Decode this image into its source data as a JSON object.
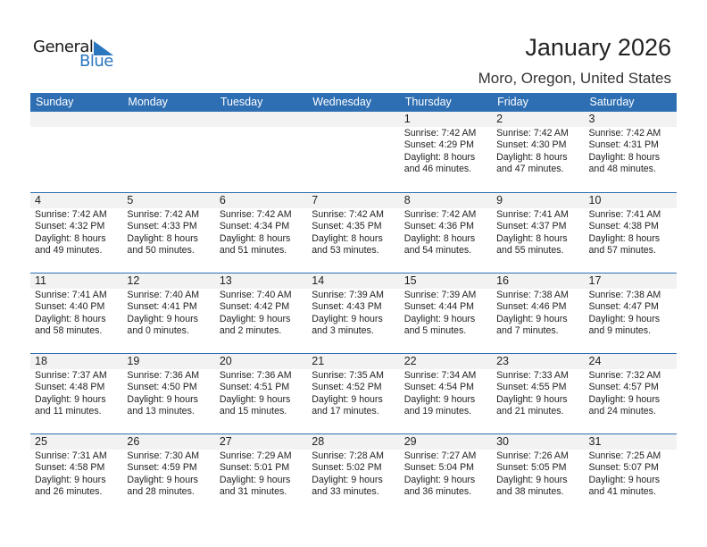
{
  "logo": {
    "word1": "General",
    "word2": "Blue"
  },
  "header": {
    "title": "January 2026",
    "location": "Moro, Oregon, United States"
  },
  "colors": {
    "accent": "#2e6fb3",
    "day_bar": "#f2f2f2"
  },
  "weekdays": [
    "Sunday",
    "Monday",
    "Tuesday",
    "Wednesday",
    "Thursday",
    "Friday",
    "Saturday"
  ],
  "weeks": [
    [
      null,
      null,
      null,
      null,
      {
        "day": "1",
        "sunrise": "Sunrise: 7:42 AM",
        "sunset": "Sunset: 4:29 PM",
        "daylight1": "Daylight: 8 hours",
        "daylight2": "and 46 minutes."
      },
      {
        "day": "2",
        "sunrise": "Sunrise: 7:42 AM",
        "sunset": "Sunset: 4:30 PM",
        "daylight1": "Daylight: 8 hours",
        "daylight2": "and 47 minutes."
      },
      {
        "day": "3",
        "sunrise": "Sunrise: 7:42 AM",
        "sunset": "Sunset: 4:31 PM",
        "daylight1": "Daylight: 8 hours",
        "daylight2": "and 48 minutes."
      }
    ],
    [
      {
        "day": "4",
        "sunrise": "Sunrise: 7:42 AM",
        "sunset": "Sunset: 4:32 PM",
        "daylight1": "Daylight: 8 hours",
        "daylight2": "and 49 minutes."
      },
      {
        "day": "5",
        "sunrise": "Sunrise: 7:42 AM",
        "sunset": "Sunset: 4:33 PM",
        "daylight1": "Daylight: 8 hours",
        "daylight2": "and 50 minutes."
      },
      {
        "day": "6",
        "sunrise": "Sunrise: 7:42 AM",
        "sunset": "Sunset: 4:34 PM",
        "daylight1": "Daylight: 8 hours",
        "daylight2": "and 51 minutes."
      },
      {
        "day": "7",
        "sunrise": "Sunrise: 7:42 AM",
        "sunset": "Sunset: 4:35 PM",
        "daylight1": "Daylight: 8 hours",
        "daylight2": "and 53 minutes."
      },
      {
        "day": "8",
        "sunrise": "Sunrise: 7:42 AM",
        "sunset": "Sunset: 4:36 PM",
        "daylight1": "Daylight: 8 hours",
        "daylight2": "and 54 minutes."
      },
      {
        "day": "9",
        "sunrise": "Sunrise: 7:41 AM",
        "sunset": "Sunset: 4:37 PM",
        "daylight1": "Daylight: 8 hours",
        "daylight2": "and 55 minutes."
      },
      {
        "day": "10",
        "sunrise": "Sunrise: 7:41 AM",
        "sunset": "Sunset: 4:38 PM",
        "daylight1": "Daylight: 8 hours",
        "daylight2": "and 57 minutes."
      }
    ],
    [
      {
        "day": "11",
        "sunrise": "Sunrise: 7:41 AM",
        "sunset": "Sunset: 4:40 PM",
        "daylight1": "Daylight: 8 hours",
        "daylight2": "and 58 minutes."
      },
      {
        "day": "12",
        "sunrise": "Sunrise: 7:40 AM",
        "sunset": "Sunset: 4:41 PM",
        "daylight1": "Daylight: 9 hours",
        "daylight2": "and 0 minutes."
      },
      {
        "day": "13",
        "sunrise": "Sunrise: 7:40 AM",
        "sunset": "Sunset: 4:42 PM",
        "daylight1": "Daylight: 9 hours",
        "daylight2": "and 2 minutes."
      },
      {
        "day": "14",
        "sunrise": "Sunrise: 7:39 AM",
        "sunset": "Sunset: 4:43 PM",
        "daylight1": "Daylight: 9 hours",
        "daylight2": "and 3 minutes."
      },
      {
        "day": "15",
        "sunrise": "Sunrise: 7:39 AM",
        "sunset": "Sunset: 4:44 PM",
        "daylight1": "Daylight: 9 hours",
        "daylight2": "and 5 minutes."
      },
      {
        "day": "16",
        "sunrise": "Sunrise: 7:38 AM",
        "sunset": "Sunset: 4:46 PM",
        "daylight1": "Daylight: 9 hours",
        "daylight2": "and 7 minutes."
      },
      {
        "day": "17",
        "sunrise": "Sunrise: 7:38 AM",
        "sunset": "Sunset: 4:47 PM",
        "daylight1": "Daylight: 9 hours",
        "daylight2": "and 9 minutes."
      }
    ],
    [
      {
        "day": "18",
        "sunrise": "Sunrise: 7:37 AM",
        "sunset": "Sunset: 4:48 PM",
        "daylight1": "Daylight: 9 hours",
        "daylight2": "and 11 minutes."
      },
      {
        "day": "19",
        "sunrise": "Sunrise: 7:36 AM",
        "sunset": "Sunset: 4:50 PM",
        "daylight1": "Daylight: 9 hours",
        "daylight2": "and 13 minutes."
      },
      {
        "day": "20",
        "sunrise": "Sunrise: 7:36 AM",
        "sunset": "Sunset: 4:51 PM",
        "daylight1": "Daylight: 9 hours",
        "daylight2": "and 15 minutes."
      },
      {
        "day": "21",
        "sunrise": "Sunrise: 7:35 AM",
        "sunset": "Sunset: 4:52 PM",
        "daylight1": "Daylight: 9 hours",
        "daylight2": "and 17 minutes."
      },
      {
        "day": "22",
        "sunrise": "Sunrise: 7:34 AM",
        "sunset": "Sunset: 4:54 PM",
        "daylight1": "Daylight: 9 hours",
        "daylight2": "and 19 minutes."
      },
      {
        "day": "23",
        "sunrise": "Sunrise: 7:33 AM",
        "sunset": "Sunset: 4:55 PM",
        "daylight1": "Daylight: 9 hours",
        "daylight2": "and 21 minutes."
      },
      {
        "day": "24",
        "sunrise": "Sunrise: 7:32 AM",
        "sunset": "Sunset: 4:57 PM",
        "daylight1": "Daylight: 9 hours",
        "daylight2": "and 24 minutes."
      }
    ],
    [
      {
        "day": "25",
        "sunrise": "Sunrise: 7:31 AM",
        "sunset": "Sunset: 4:58 PM",
        "daylight1": "Daylight: 9 hours",
        "daylight2": "and 26 minutes."
      },
      {
        "day": "26",
        "sunrise": "Sunrise: 7:30 AM",
        "sunset": "Sunset: 4:59 PM",
        "daylight1": "Daylight: 9 hours",
        "daylight2": "and 28 minutes."
      },
      {
        "day": "27",
        "sunrise": "Sunrise: 7:29 AM",
        "sunset": "Sunset: 5:01 PM",
        "daylight1": "Daylight: 9 hours",
        "daylight2": "and 31 minutes."
      },
      {
        "day": "28",
        "sunrise": "Sunrise: 7:28 AM",
        "sunset": "Sunset: 5:02 PM",
        "daylight1": "Daylight: 9 hours",
        "daylight2": "and 33 minutes."
      },
      {
        "day": "29",
        "sunrise": "Sunrise: 7:27 AM",
        "sunset": "Sunset: 5:04 PM",
        "daylight1": "Daylight: 9 hours",
        "daylight2": "and 36 minutes."
      },
      {
        "day": "30",
        "sunrise": "Sunrise: 7:26 AM",
        "sunset": "Sunset: 5:05 PM",
        "daylight1": "Daylight: 9 hours",
        "daylight2": "and 38 minutes."
      },
      {
        "day": "31",
        "sunrise": "Sunrise: 7:25 AM",
        "sunset": "Sunset: 5:07 PM",
        "daylight1": "Daylight: 9 hours",
        "daylight2": "and 41 minutes."
      }
    ]
  ]
}
